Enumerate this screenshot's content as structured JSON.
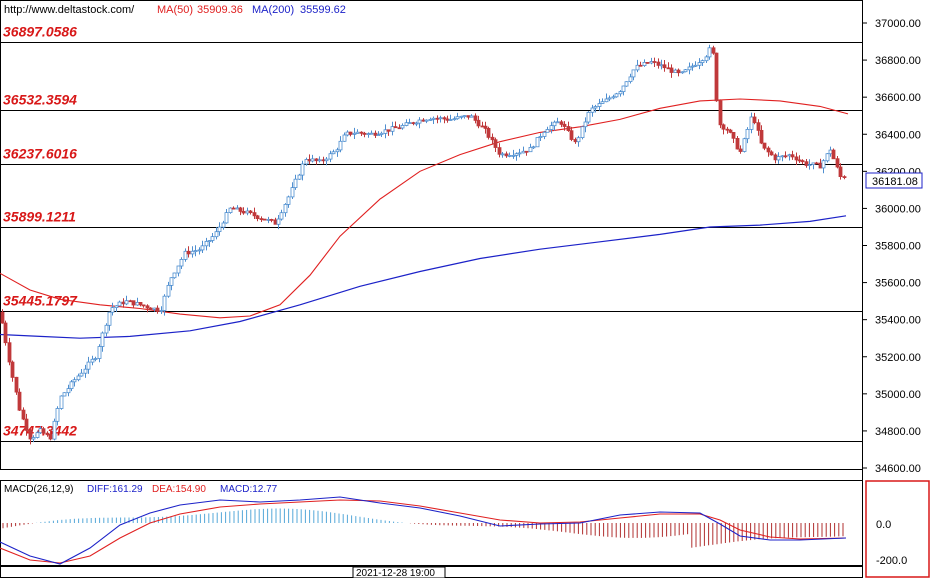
{
  "header": {
    "site": "http://www.deltastock.com/",
    "ma50_label": "MA(50)",
    "ma50_value": "35909.36",
    "ma200_label": "MA(200)",
    "ma200_value": "35599.62"
  },
  "colors": {
    "up": "#4f8fd0",
    "down": "#c0393b",
    "ma50": "#e02020",
    "ma200": "#1c22c8",
    "level_label": "#d81818",
    "price_tag_border": "#1c22c8",
    "macd_panel_border": "#d81818",
    "macd_hist_up": "#55a8d8",
    "macd_hist_down": "#b03030"
  },
  "chart_data": [
    {
      "type": "candlestick",
      "title": "",
      "y_axis_ticks": [
        34600,
        34800,
        35000,
        35200,
        35400,
        35600,
        35800,
        36000,
        36200,
        36400,
        36600,
        36800,
        37000
      ],
      "y_tick_labels": [
        "34600.00",
        "34800.00",
        "35000.00",
        "35200.00",
        "35400.00",
        "35600.00",
        "35800.00",
        "36000.00",
        "36200.00",
        "36400.00",
        "36600.00",
        "36800.00",
        "37000.00"
      ],
      "ylim": [
        34540,
        37090
      ],
      "levels": [
        {
          "value": 36897.0586,
          "label": "36897.0586"
        },
        {
          "value": 36532.3594,
          "label": "36532.3594"
        },
        {
          "value": 36237.6016,
          "label": "36237.6016"
        },
        {
          "value": 35899.1211,
          "label": "35899.1211"
        },
        {
          "value": 35445.1797,
          "label": "35445.1797"
        },
        {
          "value": 34747.3442,
          "label": "34747.3442"
        }
      ],
      "current_price": "36181.08",
      "x_label": "2021-12-28 19:00",
      "series": [
        {
          "name": "MA(50)",
          "last": 35909.36
        },
        {
          "name": "MA(200)",
          "last": 35599.62
        }
      ]
    },
    {
      "type": "line",
      "title": "",
      "indicator": "MACD(26,12,9)",
      "diff_label": "DIFF:161.29",
      "dea_label": "DEA:154.90",
      "macd_label": "MACD:12.77",
      "y_axis_ticks": [
        0.0,
        -200.0
      ],
      "y_tick_labels": [
        "0.0",
        "-200.0"
      ]
    }
  ]
}
